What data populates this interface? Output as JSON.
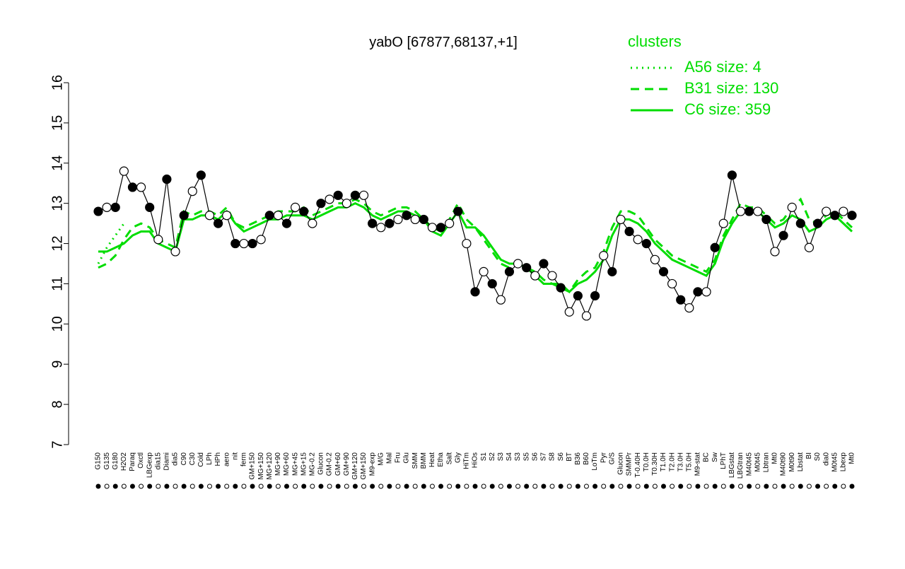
{
  "chart_data": {
    "type": "line",
    "title": "yabO [67877,68137,+1]",
    "legend_title": "clusters",
    "legend_color": "#00dd00",
    "point_color": "#000000",
    "categories": [
      "G150",
      "G135",
      "G180",
      "H2O2",
      "Paraq",
      "Oxctl",
      "LBGexp",
      "dia15",
      "Diami",
      "dia5",
      "C90",
      "C30",
      "Cold",
      "LPh",
      "HPh",
      "aero",
      "nit",
      "ferm",
      "GM+150",
      "MG+150",
      "MG+120",
      "MG+90",
      "MG+60",
      "MG+45",
      "MG+15",
      "MG-0.2",
      "Glucon",
      "GM-0.2",
      "GM+60",
      "GM+90",
      "GM+120",
      "GM+150",
      "M9-exp",
      "M/G",
      "Mal",
      "Fru",
      "Glu",
      "SMM",
      "BMM",
      "Heat",
      "Etha",
      "Salt",
      "Gly",
      "HiTm",
      "HiOs",
      "S1",
      "S2",
      "S3",
      "S4",
      "S3",
      "S5",
      "S6",
      "S7",
      "S8",
      "S6",
      "BT",
      "B36",
      "B60",
      "LoTm",
      "Pyr",
      "G/S",
      "Glucon",
      "SMMPr",
      "T-0.40H",
      "T0.0H",
      "T0.30H",
      "T1.0H",
      "T2.0H",
      "T3.0H",
      "T5.0H",
      "M9-stat",
      "BC",
      "Sw",
      "LPhT",
      "LBGstat",
      "LBGtran",
      "M40t45",
      "M0t45",
      "Lbtran",
      "Mt0",
      "M40t90",
      "M0t90",
      "Lbstat",
      "BI",
      "S0",
      "dia0",
      "M0t45",
      "Lbexp",
      "Mt0"
    ],
    "values": [
      12.8,
      12.9,
      12.9,
      13.8,
      13.4,
      13.4,
      12.9,
      12.1,
      13.6,
      11.8,
      12.7,
      13.3,
      13.7,
      12.7,
      12.5,
      12.7,
      12.0,
      12.0,
      12.0,
      12.1,
      12.7,
      12.7,
      12.5,
      12.9,
      12.8,
      12.5,
      13.0,
      13.1,
      13.2,
      13.0,
      13.2,
      13.2,
      12.5,
      12.4,
      12.5,
      12.6,
      12.7,
      12.6,
      12.6,
      12.4,
      12.4,
      12.5,
      12.8,
      12.0,
      10.8,
      11.3,
      11.0,
      10.6,
      11.3,
      11.5,
      11.4,
      11.2,
      11.5,
      11.2,
      10.9,
      10.3,
      10.7,
      10.2,
      10.7,
      11.7,
      11.3,
      12.6,
      12.3,
      12.1,
      12.0,
      11.6,
      11.3,
      11.0,
      10.6,
      10.4,
      10.8,
      10.8,
      11.9,
      12.5,
      13.7,
      12.8,
      12.8,
      12.8,
      12.6,
      11.8,
      12.2,
      12.9,
      12.5,
      11.9,
      12.5,
      12.8,
      12.7,
      12.8,
      12.7
    ],
    "series": [
      {
        "name": "A56 size: 4",
        "color": "#00dd00",
        "dash": "dotted",
        "values": [
          11.5,
          11.9,
          12.2,
          12.5,
          null,
          null,
          null,
          null,
          null,
          null,
          null,
          null,
          null,
          null,
          null,
          null,
          null,
          null,
          null,
          null,
          null,
          null,
          null,
          null,
          null,
          null,
          null,
          null,
          null,
          null,
          null,
          null,
          null,
          null,
          null,
          null,
          null,
          null,
          null,
          null,
          null,
          null,
          null,
          null,
          null,
          null,
          null,
          null,
          null,
          null,
          null,
          null,
          null,
          null,
          null,
          null,
          null,
          null,
          null,
          null,
          null,
          null,
          null,
          null,
          null,
          null,
          null,
          null,
          null,
          null,
          null,
          null,
          null,
          null,
          null,
          null,
          null,
          null,
          null,
          null,
          null,
          null,
          null,
          null,
          null,
          null,
          null,
          null,
          null
        ]
      },
      {
        "name": "B31 size: 130",
        "color": "#00dd00",
        "dash": "dashed",
        "values": [
          11.4,
          11.5,
          11.7,
          12.1,
          12.4,
          12.5,
          12.4,
          12.1,
          12.0,
          11.9,
          12.8,
          12.7,
          12.8,
          12.8,
          12.7,
          12.9,
          12.5,
          12.4,
          12.5,
          12.6,
          12.7,
          12.8,
          12.8,
          12.8,
          12.9,
          12.7,
          12.8,
          12.9,
          13.0,
          13.0,
          13.1,
          13.0,
          12.8,
          12.7,
          12.8,
          12.9,
          12.9,
          12.8,
          12.6,
          12.4,
          12.3,
          12.6,
          13.0,
          12.6,
          12.4,
          12.1,
          11.8,
          11.5,
          11.4,
          11.5,
          11.4,
          11.3,
          11.1,
          11.0,
          11.0,
          10.8,
          11.1,
          11.3,
          11.4,
          11.8,
          12.4,
          12.8,
          12.8,
          12.7,
          12.4,
          12.1,
          11.9,
          11.7,
          11.6,
          11.5,
          11.4,
          11.3,
          11.6,
          12.2,
          12.6,
          13.0,
          12.9,
          12.9,
          12.7,
          12.5,
          12.6,
          12.9,
          13.1,
          12.6,
          12.5,
          12.7,
          12.8,
          12.6,
          12.4
        ]
      },
      {
        "name": "C6 size: 359",
        "color": "#00dd00",
        "dash": "solid",
        "values": [
          11.8,
          11.8,
          11.9,
          12.0,
          12.2,
          12.3,
          12.3,
          12.0,
          11.9,
          11.8,
          12.6,
          12.6,
          12.7,
          12.7,
          12.6,
          12.8,
          12.5,
          12.3,
          12.4,
          12.5,
          12.6,
          12.6,
          12.7,
          12.7,
          12.7,
          12.6,
          12.7,
          12.8,
          12.9,
          12.9,
          13.0,
          12.9,
          12.7,
          12.6,
          12.7,
          12.8,
          12.8,
          12.7,
          12.6,
          12.3,
          12.2,
          12.5,
          12.8,
          12.4,
          12.4,
          12.2,
          11.9,
          11.6,
          11.5,
          11.5,
          11.4,
          11.2,
          11.0,
          11.0,
          10.9,
          10.8,
          11.0,
          11.1,
          11.3,
          11.6,
          12.2,
          12.6,
          12.6,
          12.5,
          12.3,
          12.0,
          11.8,
          11.6,
          11.5,
          11.4,
          11.3,
          11.2,
          11.5,
          12.1,
          12.5,
          12.8,
          12.8,
          12.8,
          12.6,
          12.4,
          12.5,
          12.7,
          12.6,
          12.3,
          12.4,
          12.6,
          12.7,
          12.5,
          12.3
        ]
      }
    ],
    "ylim": [
      7,
      16
    ],
    "yticks": [
      7,
      8,
      9,
      10,
      11,
      12,
      13,
      14,
      15,
      16
    ]
  }
}
